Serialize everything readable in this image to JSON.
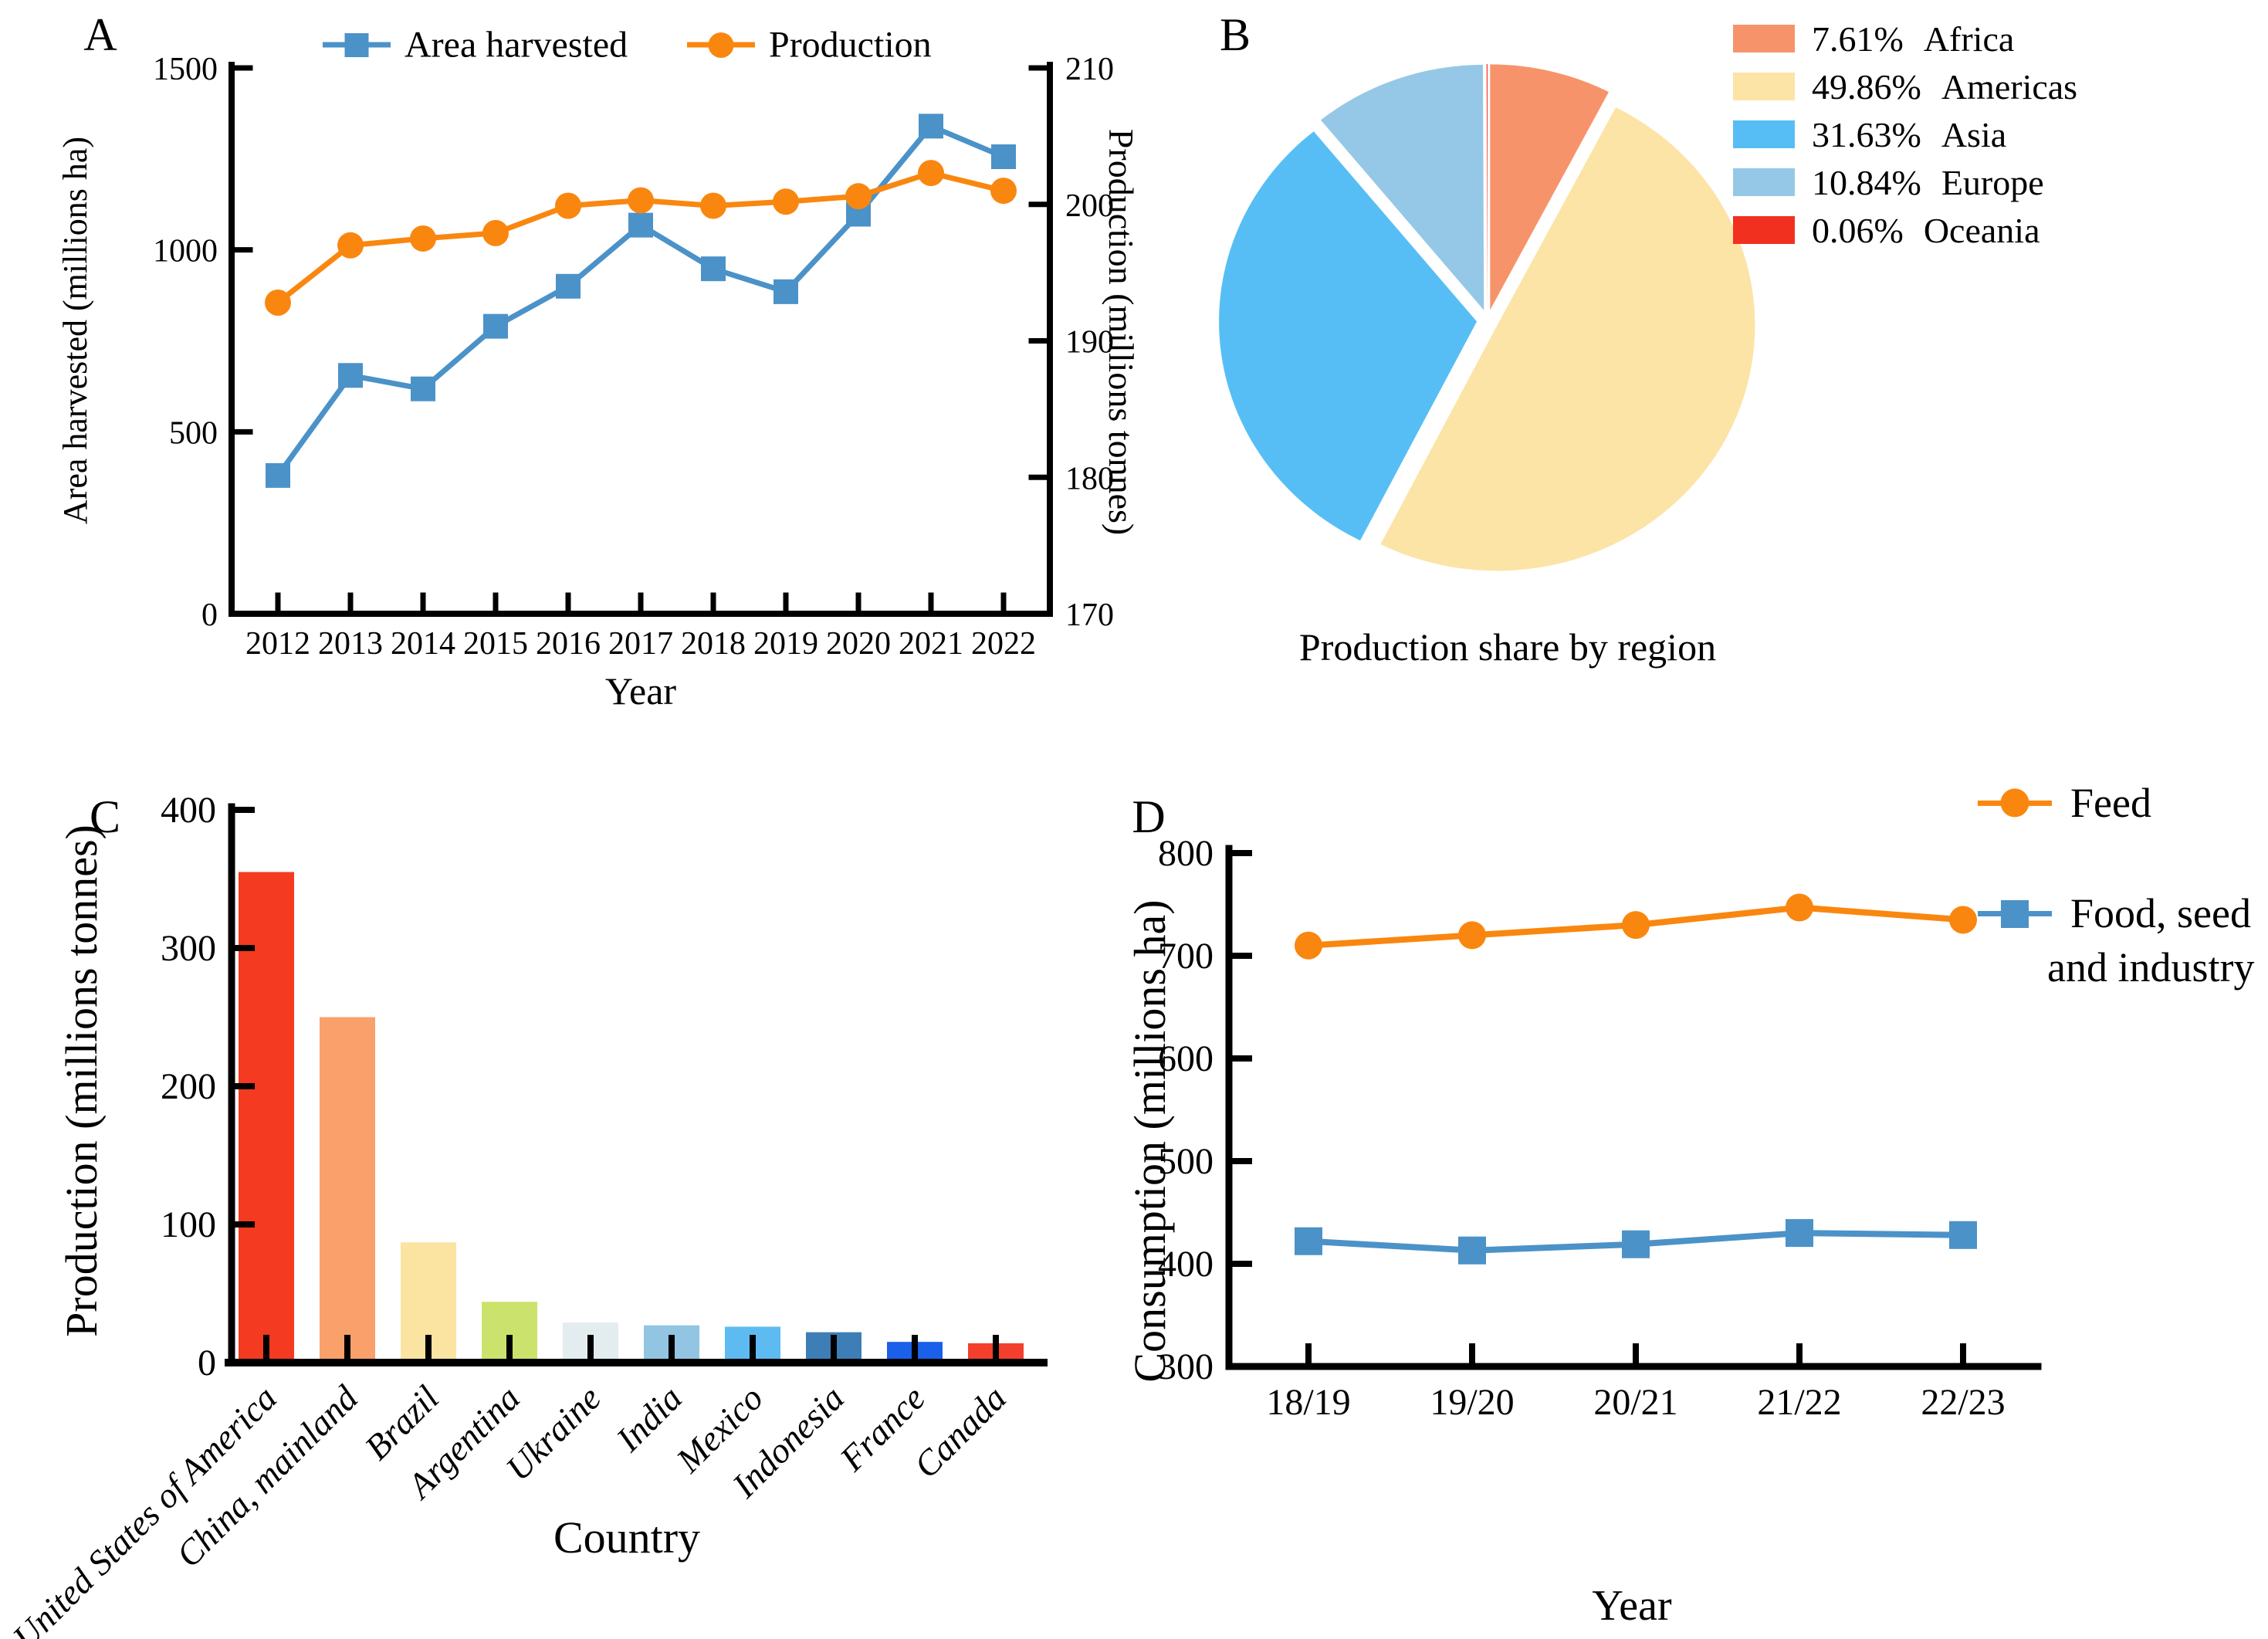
{
  "panels": {
    "a": "A",
    "b": "B",
    "c": "C",
    "d": "D"
  },
  "chart_data": [
    {
      "id": "A",
      "type": "line",
      "xlabel": "Year",
      "ylabel_left": "Area harvested (millions ha)",
      "ylabel_right": "Production (millions tonnes)",
      "x": [
        "2012",
        "2013",
        "2014",
        "2015",
        "2016",
        "2017",
        "2018",
        "2019",
        "2020",
        "2021",
        "2022"
      ],
      "ylim_left": [
        0,
        1500
      ],
      "yticks_left": [
        "0",
        "500",
        "1000",
        "1500"
      ],
      "ylim_right": [
        170,
        210
      ],
      "yticks_right": [
        "170",
        "180",
        "190",
        "200",
        "210"
      ],
      "grid": false,
      "legend_position": "top",
      "series": [
        {
          "name": "Area harvested",
          "axis": "left",
          "marker": "square",
          "color": "#4B92C8",
          "values": [
            380,
            655,
            618,
            790,
            900,
            1068,
            948,
            885,
            1098,
            1340,
            1256
          ]
        },
        {
          "name": "Production",
          "axis": "right",
          "marker": "circle",
          "color": "#F9870F",
          "values": [
            192.8,
            197.0,
            197.5,
            197.9,
            199.9,
            200.3,
            199.9,
            200.2,
            200.6,
            202.3,
            201.0
          ]
        }
      ]
    },
    {
      "id": "B",
      "type": "pie",
      "title": "Production share by region",
      "start_angle": "top",
      "direction": "clockwise",
      "slices": [
        {
          "pct": 7.61,
          "pct_text": "7.61%",
          "label": "Africa",
          "color": "#F7936A"
        },
        {
          "pct": 49.86,
          "pct_text": "49.86%",
          "label": "Americas",
          "color": "#FCE4A6"
        },
        {
          "pct": 31.63,
          "pct_text": "31.63%",
          "label": "Asia",
          "color": "#57BEF5"
        },
        {
          "pct": 10.84,
          "pct_text": "10.84%",
          "label": "Europe",
          "color": "#95C8E6"
        },
        {
          "pct": 0.06,
          "pct_text": "0.06%",
          "label": "Oceania",
          "color": "#F2301F"
        }
      ]
    },
    {
      "id": "C",
      "type": "bar",
      "xlabel": "Country",
      "ylabel": "Production (millions tonnes)",
      "ylim": [
        0,
        400
      ],
      "yticks": [
        "0",
        "100",
        "200",
        "300",
        "400"
      ],
      "categories": [
        "United States of America",
        "China, mainland",
        "Brazil",
        "Argentina",
        "Ukraine",
        "India",
        "Mexico",
        "Indonesia",
        "France",
        "Canada"
      ],
      "values": [
        355,
        250,
        87,
        44,
        29,
        27,
        26,
        22,
        15,
        14
      ],
      "colors": [
        "#F43A20",
        "#F9A06B",
        "#FBE3A2",
        "#CBE26C",
        "#E3ECEE",
        "#92C5E1",
        "#5EBBF2",
        "#3E7EB6",
        "#1B60E8",
        "#F2402C"
      ]
    },
    {
      "id": "D",
      "type": "line",
      "xlabel": "Year",
      "ylabel": "Consumption (millions ha)",
      "x": [
        "18/19",
        "19/20",
        "20/21",
        "21/22",
        "22/23"
      ],
      "ylim": [
        300,
        800
      ],
      "yticks": [
        "300",
        "400",
        "500",
        "600",
        "700",
        "800"
      ],
      "grid": false,
      "legend_position": "top-right",
      "series": [
        {
          "name": "Feed",
          "legend_lines": [
            "Feed"
          ],
          "marker": "circle",
          "color": "#F9870F",
          "values": [
            710,
            720,
            730,
            747,
            735
          ]
        },
        {
          "name": "Food, seed and industry",
          "legend_lines": [
            "Food, seed",
            "and industry"
          ],
          "marker": "square",
          "color": "#4B92C8",
          "values": [
            422,
            413,
            419,
            430,
            428
          ]
        }
      ]
    }
  ]
}
